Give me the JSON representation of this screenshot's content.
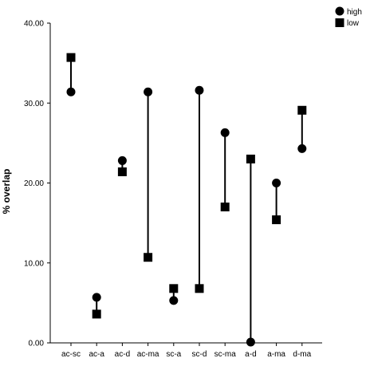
{
  "chart_data": {
    "type": "dumbbell",
    "title": "",
    "xlabel": "",
    "ylabel": "% overlap",
    "ylim": [
      0,
      40
    ],
    "yticks": [
      "0.00",
      "10.00",
      "20.00",
      "30.00",
      "40.00"
    ],
    "grid": false,
    "legend_position": "top-right",
    "categories": [
      "ac-sc",
      "ac-a",
      "ac-d",
      "ac-ma",
      "sc-a",
      "sc-d",
      "sc-ma",
      "a-d",
      "a-ma",
      "d-ma"
    ],
    "series": [
      {
        "name": "high",
        "marker": "circle",
        "values": [
          31.4,
          5.7,
          22.8,
          31.4,
          5.3,
          31.6,
          26.3,
          0.1,
          20.0,
          24.3
        ]
      },
      {
        "name": "low",
        "marker": "square",
        "values": [
          35.7,
          3.6,
          21.4,
          10.7,
          6.8,
          6.8,
          17.0,
          23.0,
          15.4,
          29.1
        ]
      }
    ],
    "colors": {
      "marker": "#000000",
      "line": "#000000",
      "axis": "#000000",
      "background": "#ffffff"
    }
  }
}
